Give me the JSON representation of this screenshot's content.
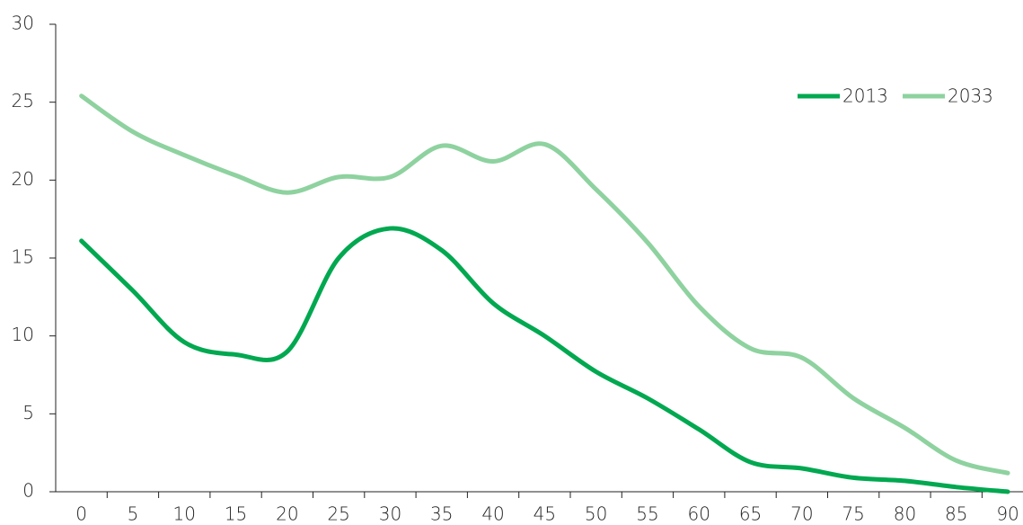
{
  "chart_data": {
    "type": "line",
    "categories": [
      "0",
      "5",
      "10",
      "15",
      "20",
      "25",
      "30",
      "35",
      "40",
      "45",
      "50",
      "55",
      "60",
      "65",
      "70",
      "75",
      "80",
      "85",
      "90"
    ],
    "series": [
      {
        "name": "2013",
        "color": "#00a850",
        "values": [
          16.1,
          12.9,
          9.6,
          8.8,
          9.0,
          15.0,
          16.9,
          15.5,
          12.1,
          10.0,
          7.7,
          6.0,
          4.0,
          1.9,
          1.5,
          0.9,
          0.7,
          0.3,
          0.0
        ]
      },
      {
        "name": "2033",
        "color": "#8ed29f",
        "values": [
          25.4,
          23.1,
          21.6,
          20.3,
          19.2,
          20.2,
          20.2,
          22.2,
          21.2,
          22.3,
          19.4,
          16.0,
          11.9,
          9.2,
          8.6,
          6.0,
          4.1,
          2.0,
          1.2
        ]
      }
    ],
    "ylim": [
      0,
      30
    ],
    "yticks": [
      0,
      5,
      10,
      15,
      20,
      25,
      30
    ],
    "legend": "top-right",
    "smooth": true
  }
}
